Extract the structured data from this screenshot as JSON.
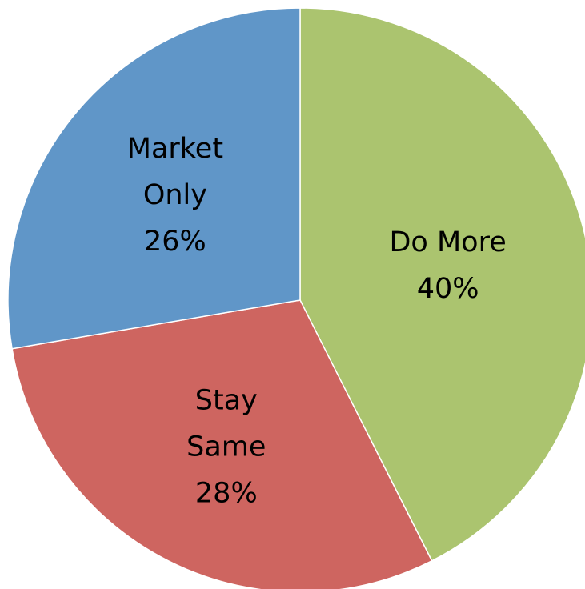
{
  "chart_data": {
    "type": "pie",
    "title": "",
    "slices": [
      {
        "name": "Do More",
        "label_lines": [
          "Do More",
          "40%"
        ],
        "value": 40,
        "color": "#ABC46F"
      },
      {
        "name": "Stay Same",
        "label_lines": [
          "Stay",
          "Same",
          "28%"
        ],
        "value": 28,
        "color": "#CE6560"
      },
      {
        "name": "Market Only",
        "label_lines": [
          "Market",
          "Only",
          "26%"
        ],
        "value": 26,
        "color": "#6096C8"
      }
    ],
    "start_angle_deg": 0,
    "direction": "clockwise",
    "legend": "none"
  }
}
